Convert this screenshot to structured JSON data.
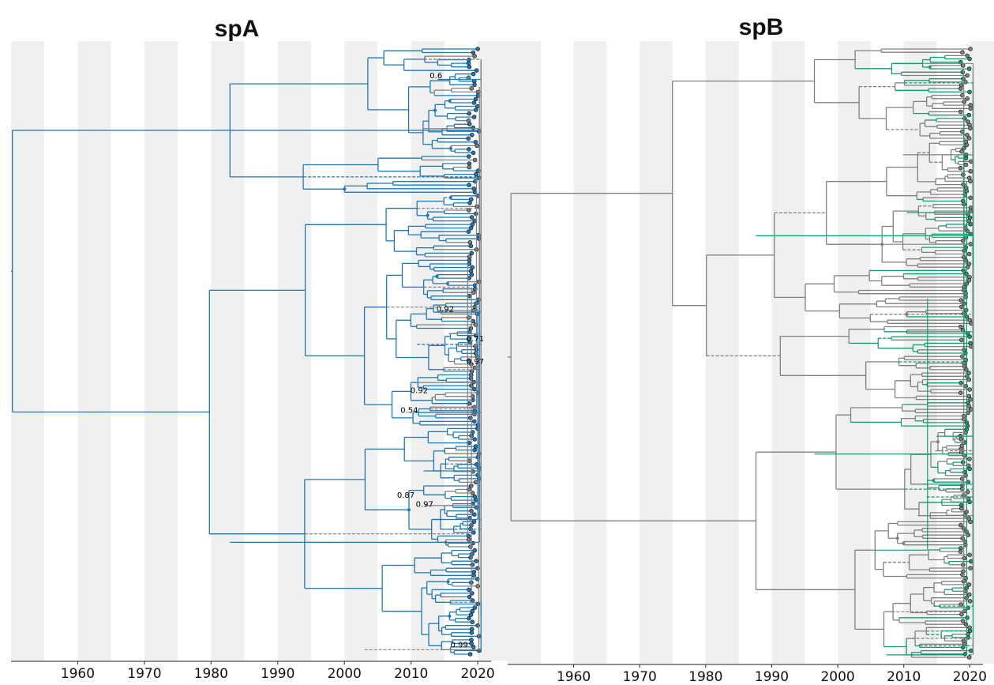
{
  "chart_data": [
    {
      "type": "phylogenetic-tree",
      "title": "spA",
      "x_axis": {
        "ticks": [
          1960,
          1970,
          1980,
          1990,
          2000,
          2010,
          2020
        ],
        "range": [
          1950,
          2022
        ]
      },
      "color_main": "#1f77b4",
      "color_other": "#808080",
      "node_support_labels": [
        {
          "label": "0.6",
          "year": 2012.8,
          "row": 0.06
        },
        {
          "label": "0.92",
          "year": 2013.8,
          "row": 0.437
        },
        {
          "label": "0.71",
          "year": 2018.3,
          "row": 0.485
        },
        {
          "label": "0.97",
          "year": 2018.3,
          "row": 0.522
        },
        {
          "label": "0.92",
          "year": 2009.9,
          "row": 0.568
        },
        {
          "label": "0.54",
          "year": 2008.4,
          "row": 0.6
        },
        {
          "label": "0.87",
          "year": 2007.9,
          "row": 0.737
        },
        {
          "label": "0.97",
          "year": 2010.7,
          "row": 0.752
        },
        {
          "label": "0.99",
          "year": 2015.9,
          "row": 0.979
        }
      ]
    },
    {
      "type": "phylogenetic-tree",
      "title": "spB",
      "x_axis": {
        "ticks": [
          1960,
          1970,
          1980,
          1990,
          2000,
          2010,
          2020
        ],
        "range": [
          1950,
          2022
        ]
      },
      "color_main": "#159a73",
      "color_other": "#808080",
      "node_support_labels": []
    }
  ]
}
